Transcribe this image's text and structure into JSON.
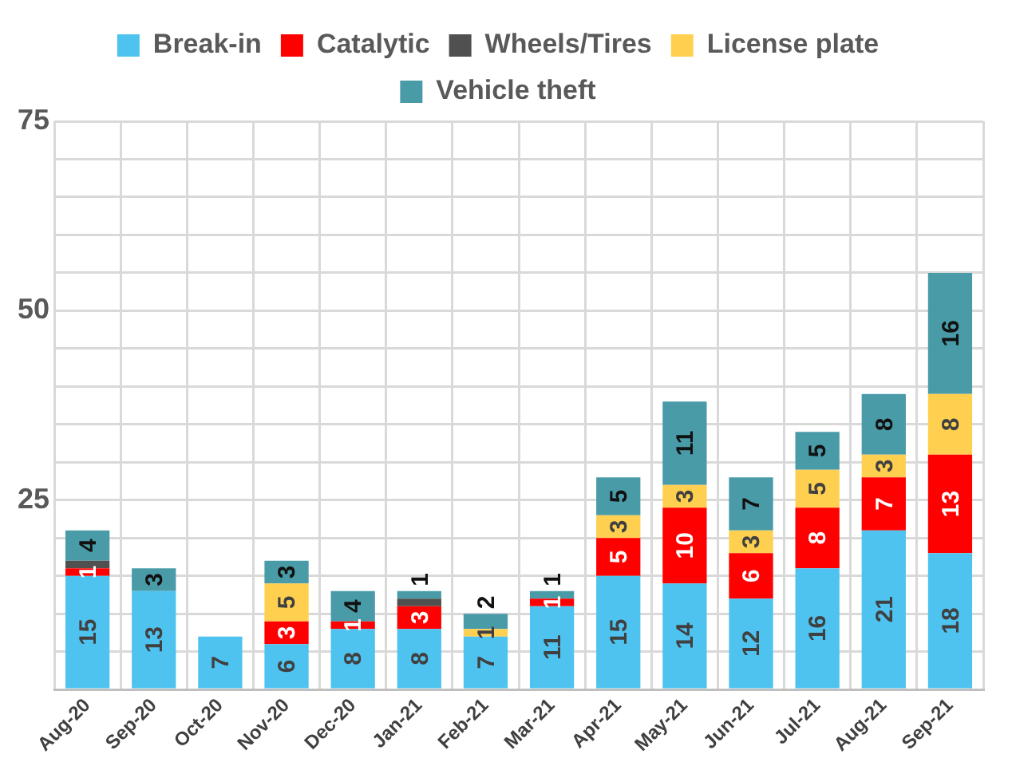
{
  "chart_data": {
    "type": "bar",
    "stacked": true,
    "legend": "top",
    "grid": true,
    "categories": [
      "Aug-20",
      "Sep-20",
      "Oct-20",
      "Nov-20",
      "Dec-20",
      "Jan-21",
      "Feb-21",
      "Mar-21",
      "Apr-21",
      "May-21",
      "Jun-21",
      "Jul-21",
      "Aug-21",
      "Sep-21"
    ],
    "ylim": [
      0,
      75
    ],
    "yticks": [
      {
        "value": 0,
        "label": null
      },
      {
        "value": 5,
        "label": null
      },
      {
        "value": 10,
        "label": null
      },
      {
        "value": 15,
        "label": null
      },
      {
        "value": 20,
        "label": null
      },
      25,
      {
        "value": 30,
        "label": null
      },
      {
        "value": 35,
        "label": null
      },
      {
        "value": 40,
        "label": null
      },
      {
        "value": 45,
        "label": null
      },
      50,
      {
        "value": 55,
        "label": null
      },
      {
        "value": 60,
        "label": null
      },
      {
        "value": 65,
        "label": null
      },
      {
        "value": 70,
        "label": null
      },
      75
    ],
    "series": [
      {
        "name": "Break-in",
        "color": "#4fc3f0",
        "values": [
          15,
          13,
          7,
          6,
          8,
          8,
          7,
          11,
          15,
          14,
          12,
          16,
          21,
          18
        ],
        "value_labels": [
          "15",
          "13",
          "7",
          "6",
          "8",
          "8",
          "7",
          "11",
          "15",
          "14",
          "12",
          "16",
          "21",
          "18"
        ]
      },
      {
        "name": "Catalytic",
        "color": "#ff0000",
        "values": [
          1,
          null,
          null,
          3,
          1,
          3,
          null,
          1,
          5,
          10,
          6,
          8,
          7,
          13
        ],
        "value_labels": [
          "1",
          null,
          null,
          "3",
          "1",
          "3",
          null,
          "1",
          "5",
          "10",
          "6",
          "8",
          "7",
          "13"
        ]
      },
      {
        "name": "Wheels/Tires",
        "color": "#505050",
        "values": [
          1,
          null,
          null,
          null,
          null,
          1,
          null,
          null,
          null,
          null,
          null,
          null,
          null,
          null
        ],
        "value_labels": [
          null,
          null,
          null,
          null,
          null,
          null,
          null,
          null,
          null,
          null,
          null,
          null,
          null,
          null
        ]
      },
      {
        "name": "License plate",
        "color": "#ffd050",
        "values": [
          null,
          null,
          null,
          5,
          null,
          null,
          1,
          null,
          3,
          3,
          3,
          5,
          3,
          8
        ],
        "value_labels": [
          null,
          null,
          null,
          "5",
          null,
          null,
          "1",
          null,
          "3",
          "3",
          "3",
          "5",
          "3",
          "8"
        ]
      },
      {
        "name": "Vehicle theft",
        "color": "#4a9ba8",
        "values": [
          4,
          3,
          null,
          3,
          4,
          1,
          2,
          1,
          5,
          11,
          7,
          5,
          8,
          16
        ],
        "value_labels": [
          "4",
          "3",
          null,
          "3",
          "4",
          "1",
          "2",
          "1",
          "5",
          "11",
          "7",
          "5",
          "8",
          "16"
        ]
      }
    ]
  }
}
